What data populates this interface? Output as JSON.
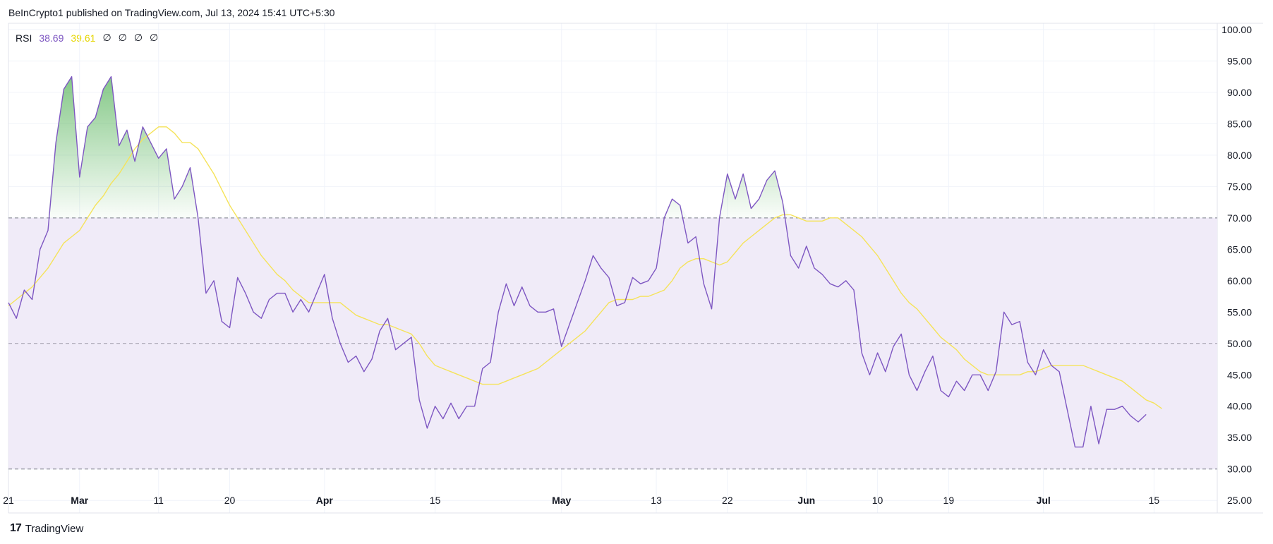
{
  "header": {
    "publisher": "BeInCrypto1 published on TradingView.com, Jul 13, 2024 15:41 UTC+5:30"
  },
  "legend": {
    "indicator": "RSI",
    "rsi_value": "38.69",
    "ma_value": "39.61",
    "extra_values": [
      "∅",
      "∅",
      "∅",
      "∅"
    ]
  },
  "footer": {
    "brand": "TradingView",
    "logo_text": "17"
  },
  "colors": {
    "rsi_line": "#7e57c2",
    "ma_line": "#f5e35a",
    "band_fill": "#f0ebf8",
    "overbought_fill": "#4caf50",
    "grid": "#f0f3fa"
  },
  "chart_data": {
    "type": "line",
    "title": "",
    "ylim": [
      23,
      101
    ],
    "y_ticks": [
      "100.00",
      "95.00",
      "90.00",
      "85.00",
      "80.00",
      "75.00",
      "70.00",
      "65.00",
      "60.00",
      "55.00",
      "50.00",
      "45.00",
      "40.00",
      "35.00",
      "30.00",
      "25.00"
    ],
    "x_ticks": [
      {
        "label": "21",
        "i": 0,
        "bold": false
      },
      {
        "label": "Mar",
        "i": 9,
        "bold": true
      },
      {
        "label": "11",
        "i": 19,
        "bold": false
      },
      {
        "label": "20",
        "i": 28,
        "bold": false
      },
      {
        "label": "Apr",
        "i": 40,
        "bold": true
      },
      {
        "label": "15",
        "i": 54,
        "bold": false
      },
      {
        "label": "May",
        "i": 70,
        "bold": true
      },
      {
        "label": "13",
        "i": 82,
        "bold": false
      },
      {
        "label": "22",
        "i": 91,
        "bold": false
      },
      {
        "label": "Jun",
        "i": 101,
        "bold": true
      },
      {
        "label": "10",
        "i": 110,
        "bold": false
      },
      {
        "label": "19",
        "i": 119,
        "bold": false
      },
      {
        "label": "Jul",
        "i": 131,
        "bold": true
      },
      {
        "label": "15",
        "i": 145,
        "bold": false
      }
    ],
    "x_range": [
      0,
      153
    ],
    "bands": {
      "upper": 70,
      "middle": 50,
      "lower": 30
    },
    "series": [
      {
        "name": "RSI",
        "values": [
          56.5,
          54,
          58.5,
          57,
          65,
          68,
          82,
          90.5,
          92.5,
          76.5,
          84.5,
          86,
          90.5,
          92.5,
          81.5,
          84,
          79,
          84.5,
          82,
          79.5,
          81,
          73,
          75,
          78,
          70,
          58,
          60,
          53.5,
          52.5,
          60.5,
          58,
          55,
          54,
          57,
          58,
          58,
          55,
          57,
          55,
          58,
          61,
          54,
          50,
          47,
          48,
          45.5,
          47.5,
          52,
          54,
          49,
          50,
          51,
          41,
          36.5,
          40,
          38,
          40.5,
          38,
          40,
          40,
          46,
          47,
          55,
          59.5,
          56,
          59,
          56,
          55,
          55,
          55.5,
          49.5,
          53,
          56.5,
          60,
          64,
          62,
          60.5,
          56,
          56.5,
          60.5,
          59.5,
          60,
          62,
          70,
          73,
          72,
          66,
          67,
          59.5,
          55.5,
          70,
          77,
          73,
          77,
          71.5,
          73,
          76,
          77.5,
          72.5,
          64,
          62,
          65.5,
          62,
          61,
          59.5,
          59,
          60,
          58.5,
          48.5,
          45,
          48.5,
          45.5,
          49.5,
          51.5,
          45,
          42.5,
          45.5,
          48,
          42.5,
          41.5,
          44,
          42.5,
          45,
          45,
          42.5,
          45.5,
          55,
          53,
          53.5,
          47,
          45,
          49,
          46.5,
          45.5,
          39.5,
          33.5,
          33.5,
          40,
          34,
          39.5,
          39.5,
          40,
          38.5,
          37.5,
          38.69
        ]
      },
      {
        "name": "RSI-based MA",
        "values": [
          56,
          57,
          58,
          59,
          60.5,
          62,
          64,
          66,
          67,
          68,
          70,
          72,
          73.5,
          75.5,
          77,
          79,
          81,
          82.5,
          83.5,
          84.5,
          84.5,
          83.5,
          82,
          82,
          81,
          79,
          77,
          74.5,
          72,
          70,
          68,
          66,
          64,
          62.5,
          61,
          60,
          58.5,
          57.5,
          56.5,
          56.5,
          56.5,
          56.5,
          56.5,
          55.5,
          54.5,
          54,
          53.5,
          53,
          53,
          52.5,
          52,
          51.5,
          50,
          48,
          46.5,
          46,
          45.5,
          45,
          44.5,
          44,
          43.5,
          43.5,
          43.5,
          44,
          44.5,
          45,
          45.5,
          46,
          47,
          48,
          49,
          50,
          51,
          52,
          53.5,
          55,
          56.5,
          57,
          57,
          57,
          57.5,
          57.5,
          58,
          58.5,
          60,
          62,
          63,
          63.5,
          63.5,
          63,
          62.5,
          63,
          64.5,
          66,
          67,
          68,
          69,
          70,
          70.5,
          70.5,
          70,
          69.5,
          69.5,
          69.5,
          70,
          70,
          69,
          68,
          67,
          65.5,
          64,
          62,
          60,
          58,
          56.5,
          55.5,
          54,
          52.5,
          51,
          50,
          49,
          47.5,
          46.5,
          45.5,
          45,
          45,
          45,
          45,
          45,
          45.5,
          45.5,
          46,
          46.5,
          46.5,
          46.5,
          46.5,
          46.5,
          46,
          45.5,
          45,
          44.5,
          44,
          43,
          42,
          41,
          40.5,
          39.61
        ]
      }
    ]
  }
}
